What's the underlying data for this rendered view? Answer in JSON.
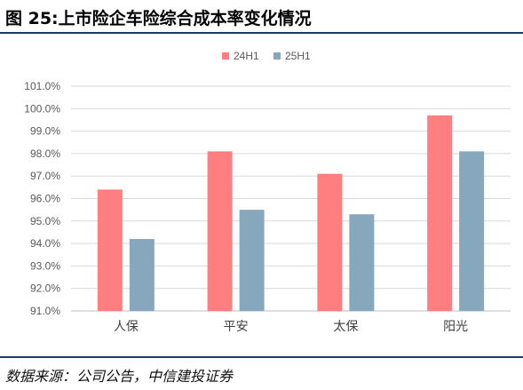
{
  "header": {
    "title": "图 25:上市险企车险综合成本率变化情况"
  },
  "footer": {
    "source": "数据来源：公司公告，中信建投证券"
  },
  "chart_data": {
    "type": "bar",
    "categories": [
      "人保",
      "平安",
      "太保",
      "阳光"
    ],
    "series": [
      {
        "name": "24H1",
        "values": [
          96.4,
          98.1,
          97.1,
          99.7
        ],
        "color": "#ff7f80"
      },
      {
        "name": "25H1",
        "values": [
          94.2,
          95.5,
          95.3,
          98.1
        ],
        "color": "#87a7bd"
      }
    ],
    "ylim": [
      91.0,
      101.0
    ],
    "yticks": [
      "91.0%",
      "92.0%",
      "93.0%",
      "94.0%",
      "95.0%",
      "96.0%",
      "97.0%",
      "98.0%",
      "99.0%",
      "100.0%",
      "101.0%"
    ],
    "grid": true,
    "legend": "top-center",
    "xlabel": "",
    "ylabel": ""
  }
}
